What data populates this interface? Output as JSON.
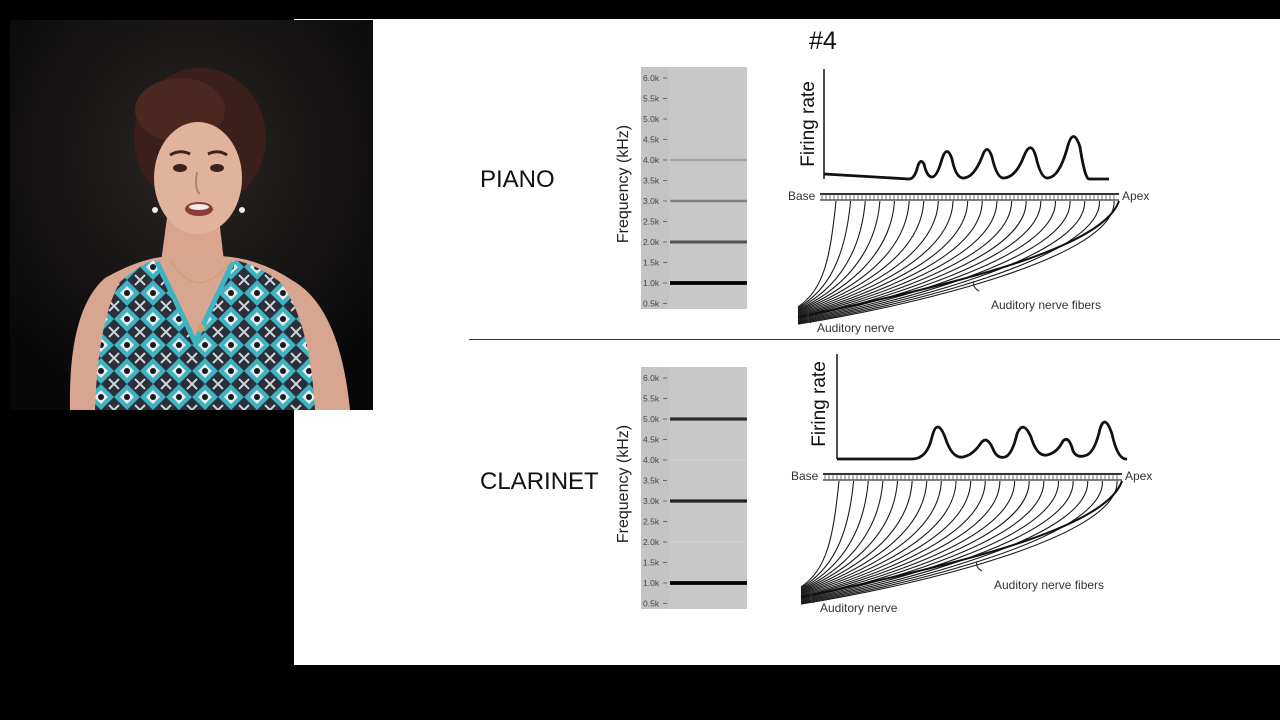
{
  "slide": {
    "number": "#4",
    "panels": [
      {
        "instrument": "PIANO",
        "spectrogram": {
          "ylabel": "Frequency (kHz)",
          "ticks": [
            "6.0k",
            "5.5k",
            "5.0k",
            "4.5k",
            "4.0k",
            "3.5k",
            "3.0k",
            "2.5k",
            "2.0k",
            "1.5k",
            "1.0k",
            "0.5k"
          ],
          "harmonics": [
            {
              "freq_khz": 1.0,
              "intensity": 1.0
            },
            {
              "freq_khz": 2.0,
              "intensity": 0.65
            },
            {
              "freq_khz": 3.0,
              "intensity": 0.45
            },
            {
              "freq_khz": 4.0,
              "intensity": 0.3
            },
            {
              "freq_khz": 5.0,
              "intensity": 0.15
            }
          ]
        },
        "firing_rate_label": "Firing rate",
        "base_label": "Base",
        "apex_label": "Apex",
        "fibers_label": "Auditory nerve fibers",
        "nerve_label": "Auditory nerve"
      },
      {
        "instrument": "CLARINET",
        "spectrogram": {
          "ylabel": "Frequency (kHz)",
          "ticks": [
            "6.0k",
            "5.5k",
            "5.0k",
            "4.5k",
            "4.0k",
            "3.5k",
            "3.0k",
            "2.5k",
            "2.0k",
            "1.5k",
            "1.0k",
            "0.5k"
          ],
          "harmonics": [
            {
              "freq_khz": 1.0,
              "intensity": 1.0
            },
            {
              "freq_khz": 2.0,
              "intensity": 0.12
            },
            {
              "freq_khz": 3.0,
              "intensity": 0.85
            },
            {
              "freq_khz": 4.0,
              "intensity": 0.12
            },
            {
              "freq_khz": 5.0,
              "intensity": 0.8
            }
          ]
        },
        "firing_rate_label": "Firing rate",
        "base_label": "Base",
        "apex_label": "Apex",
        "fibers_label": "Auditory nerve fibers",
        "nerve_label": "Auditory nerve"
      }
    ]
  },
  "webcam": {
    "description_icon": "presenter-video-icon"
  },
  "colors": {
    "background": "#000000",
    "slide": "#ffffff",
    "spectrogram_bg": "#c8c8c8",
    "ink": "#111111"
  }
}
